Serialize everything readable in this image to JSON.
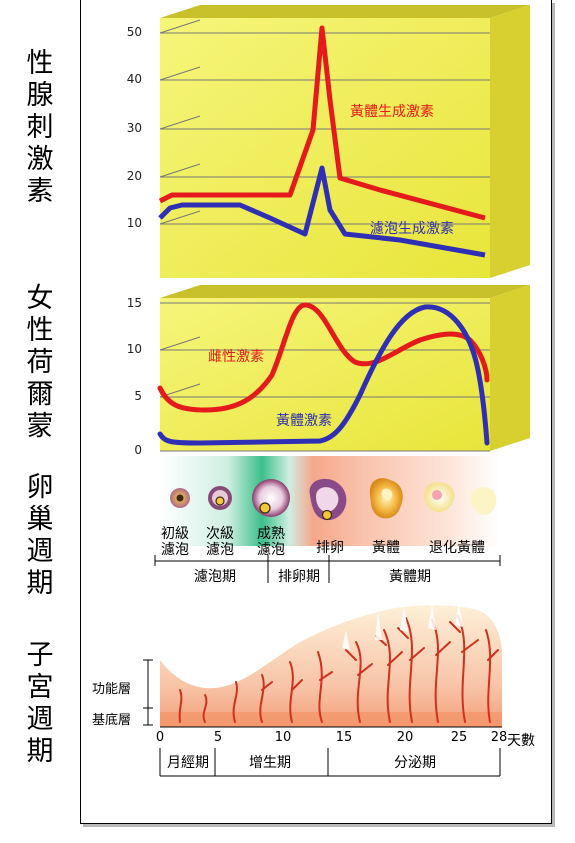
{
  "row_labels": {
    "gonadotropin": "性腺刺激素",
    "female_hormone": "女性荷爾蒙",
    "ovarian_cycle": "卵巢週期",
    "uterine_cycle": "子宮週期"
  },
  "gonadotropin_chart": {
    "y_ticks": [
      "50",
      "40",
      "30",
      "20",
      "10"
    ],
    "series": [
      {
        "name": "黃體生成激素",
        "color": "#e41a1c"
      },
      {
        "name": "濾泡生成激素",
        "color": "#2f2fb5"
      }
    ]
  },
  "hormone_chart": {
    "y_ticks": [
      "15",
      "10",
      "5",
      "0"
    ],
    "series": [
      {
        "name": "雌性激素",
        "color": "#e41a1c"
      },
      {
        "name": "黃體激素",
        "color": "#2f2fb5"
      }
    ]
  },
  "ovarian": {
    "stages": [
      "初級\n濾泡",
      "次級\n濾泡",
      "成熟\n濾泡",
      "排卵",
      "黃體",
      "退化黃體"
    ],
    "phases": [
      "濾泡期",
      "排卵期",
      "黃體期"
    ]
  },
  "uterine": {
    "layers": [
      "功能層",
      "基底層"
    ],
    "day_ticks": [
      "0",
      "5",
      "10",
      "15",
      "20",
      "25",
      "28"
    ],
    "day_unit": "天數",
    "phases": [
      "月經期",
      "增生期",
      "分泌期"
    ]
  },
  "colors": {
    "panel": "#f0ef55",
    "panel_top": "#c9c12a",
    "red": "#e41a1c",
    "blue": "#2f2fb5"
  }
}
